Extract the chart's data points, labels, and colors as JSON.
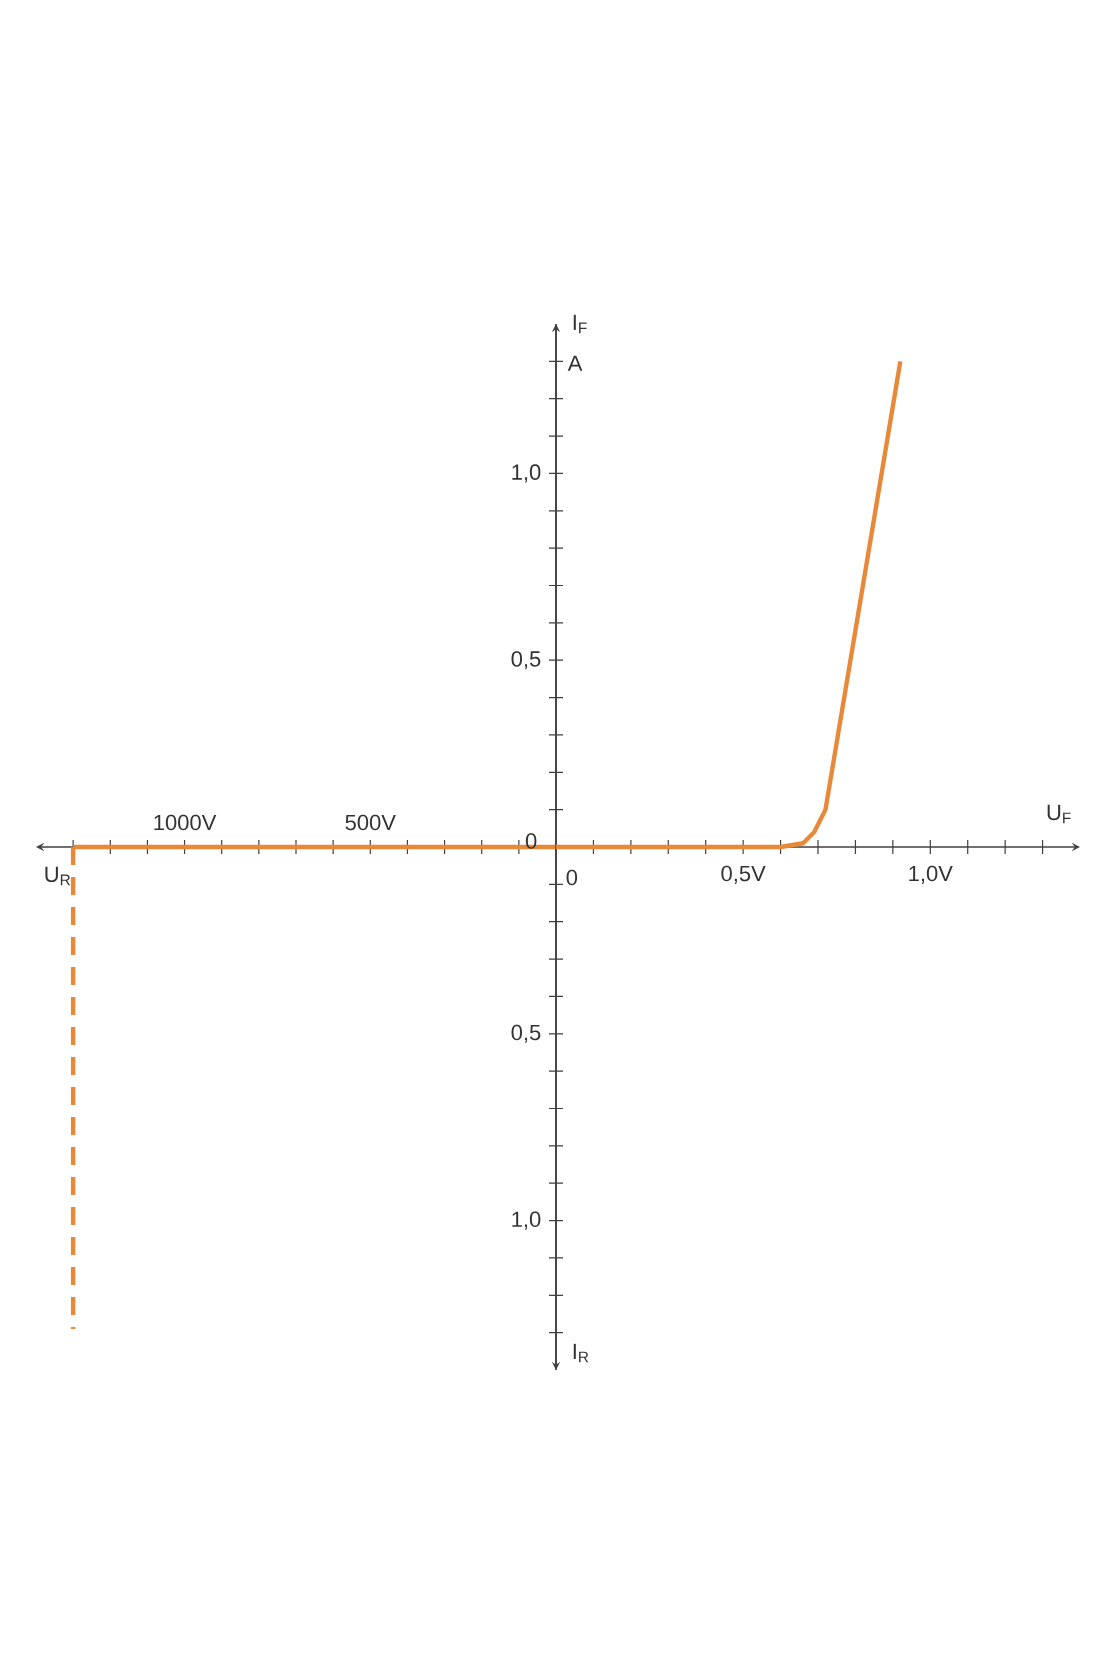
{
  "chart_data": [
    {
      "type": "line",
      "xlabel": "U$_{R}$",
      "ylabel": "I$_{F}$",
      "tick_labels": "x",
      "xlim": [
        -1400,
        0
      ],
      "ylim": [
        -1.4,
        1.4
      ],
      "xticks": [
        {
          "value": -1300,
          "label": null
        },
        {
          "value": -1200,
          "label": null
        },
        {
          "value": -1100,
          "label": null
        },
        {
          "value": -1000,
          "label": "1000V"
        },
        {
          "value": -900,
          "label": null
        },
        {
          "value": -800,
          "label": null
        },
        {
          "value": -700,
          "label": null
        },
        {
          "value": -600,
          "label": null
        },
        {
          "value": -500,
          "label": "500V"
        },
        {
          "value": -400,
          "label": null
        },
        {
          "value": -300,
          "label": null
        },
        {
          "value": -200,
          "label": null
        },
        {
          "value": -100,
          "label": null
        }
      ],
      "series": [
        {
          "color": "#e8893a",
          "x": [
            -1300,
            0
          ],
          "values": [
            0,
            0
          ]
        },
        {
          "color": "#e8893a",
          "x": [
            -1300,
            -1300
          ],
          "values": [
            0,
            -1.29
          ],
          "line_style": "dashed"
        }
      ]
    },
    {
      "type": "line",
      "xlabel": "U$_{F}$",
      "ylabel": "I$_{R}$",
      "annotations": [
        "A"
      ],
      "xlim": [
        0,
        1.4
      ],
      "ylim": [
        -1.4,
        1.4
      ],
      "xticks": [
        0,
        {
          "value": 0.1,
          "label": null
        },
        {
          "value": 0.2,
          "label": null
        },
        {
          "value": 0.3,
          "label": null
        },
        {
          "value": 0.4,
          "label": null
        },
        {
          "value": 0.5,
          "label": "0,5V"
        },
        {
          "value": 0.6,
          "label": null
        },
        {
          "value": 0.7,
          "label": null
        },
        {
          "value": 0.8,
          "label": null
        },
        {
          "value": 0.9,
          "label": null
        },
        {
          "value": 1.0,
          "label": "1,0V"
        },
        {
          "value": 1.1,
          "label": null
        },
        {
          "value": 1.2,
          "label": null
        },
        {
          "value": 1.3,
          "label": null
        }
      ],
      "yticks": [
        {
          "value": -1.3,
          "label": null
        },
        {
          "value": -1.2,
          "label": null
        },
        {
          "value": -1.1,
          "label": null
        },
        {
          "value": -1.0,
          "label": "1,0"
        },
        {
          "value": -0.9,
          "label": null
        },
        {
          "value": -0.8,
          "label": null
        },
        {
          "value": -0.7,
          "label": null
        },
        {
          "value": -0.6,
          "label": null
        },
        {
          "value": -0.5,
          "label": "0,5"
        },
        {
          "value": -0.4,
          "label": null
        },
        {
          "value": -0.3,
          "label": null
        },
        {
          "value": -0.2,
          "label": null
        },
        {
          "value": -0.1,
          "label": null
        },
        0,
        {
          "value": 0.1,
          "label": null
        },
        {
          "value": 0.2,
          "label": null
        },
        {
          "value": 0.3,
          "label": null
        },
        {
          "value": 0.4,
          "label": null
        },
        {
          "value": 0.5,
          "label": "0,5"
        },
        {
          "value": 0.6,
          "label": null
        },
        {
          "value": 0.7,
          "label": null
        },
        {
          "value": 0.8,
          "label": null
        },
        {
          "value": 0.9,
          "label": null
        },
        {
          "value": 1.0,
          "label": "1,0"
        },
        {
          "value": 1.1,
          "label": null
        },
        {
          "value": 1.2,
          "label": null
        },
        {
          "value": 1.3,
          "label": null
        }
      ],
      "series": [
        {
          "color": "#e8893a",
          "x": [
            0,
            0.6,
            0.66,
            0.69,
            0.72,
            0.92
          ],
          "values": [
            0,
            0,
            0.01,
            0.04,
            0.1,
            1.3
          ]
        }
      ]
    }
  ]
}
